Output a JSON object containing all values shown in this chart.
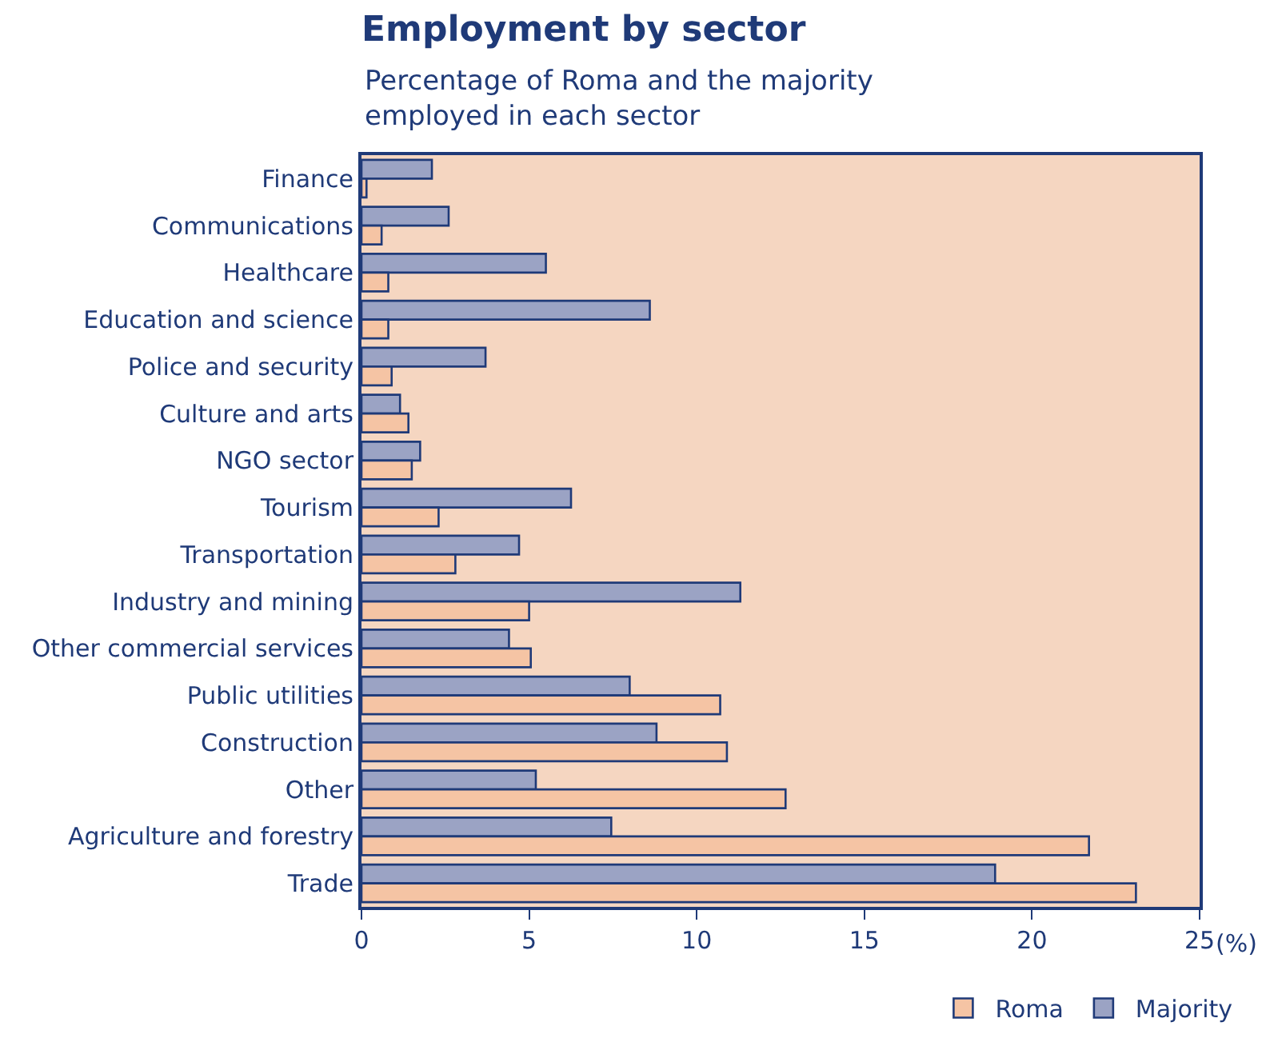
{
  "chart_data": {
    "type": "bar",
    "orientation": "horizontal",
    "title": "Employment by sector",
    "subtitle": "Percentage of Roma and the majority employed in each sector",
    "xlabel": "(%)",
    "categories": [
      "Finance",
      "Communications",
      "Healthcare",
      "Education and science",
      "Police and security",
      "Culture and arts",
      "NGO sector",
      "Tourism",
      "Transportation",
      "Industry and mining",
      "Other commercial services",
      "Public utilities",
      "Construction",
      "Other",
      "Agriculture and forestry",
      "Trade"
    ],
    "series": [
      {
        "name": "Roma",
        "color": "#f5c4a4",
        "values": [
          0.15,
          0.6,
          0.8,
          0.8,
          0.9,
          1.4,
          1.5,
          2.3,
          2.8,
          5.0,
          5.05,
          10.7,
          10.9,
          12.65,
          21.7,
          23.1
        ]
      },
      {
        "name": "Majority",
        "color": "#9ba3c4",
        "values": [
          2.1,
          2.6,
          5.5,
          8.6,
          3.7,
          1.15,
          1.75,
          6.25,
          4.7,
          11.3,
          4.4,
          8.0,
          8.8,
          5.2,
          7.45,
          18.9
        ]
      }
    ],
    "xlim": [
      0,
      25
    ],
    "xticks": [
      0,
      5,
      10,
      15,
      20,
      25
    ],
    "grid": false,
    "legend": "bottom right"
  }
}
